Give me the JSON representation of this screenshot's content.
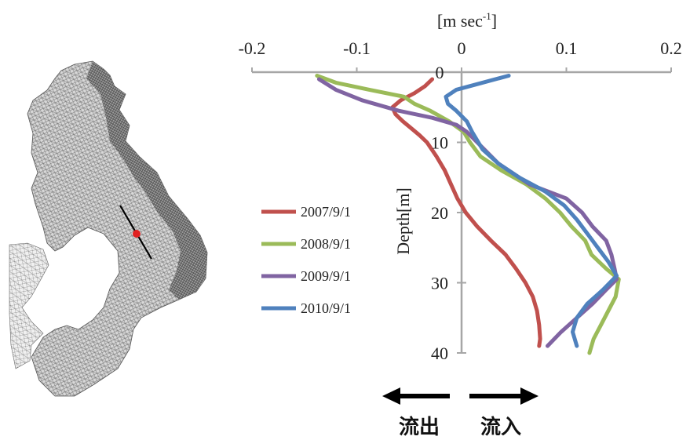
{
  "chart_data": {
    "type": "line",
    "xlabel_main": "[m sec",
    "xlabel_sup": "-1",
    "xlabel_close": "]",
    "ylabel": "Depth[m]",
    "xlim": [
      -0.2,
      0.2
    ],
    "ylim": [
      0,
      40
    ],
    "x_ticks": [
      -0.2,
      -0.1,
      0,
      0.1,
      0.2
    ],
    "x_tick_labels": [
      "-0.2",
      "-0.1",
      "0",
      "0.1",
      "0.2"
    ],
    "y_ticks": [
      0,
      10,
      20,
      30,
      40
    ],
    "y_tick_labels": [
      "0",
      "10",
      "20",
      "30",
      "40"
    ],
    "legend_position": "left",
    "series": [
      {
        "name": "2007/9/1",
        "color": "#c0504d",
        "points": [
          [
            -0.028,
            1
          ],
          [
            -0.035,
            2
          ],
          [
            -0.045,
            3
          ],
          [
            -0.058,
            4
          ],
          [
            -0.066,
            5
          ],
          [
            -0.063,
            6
          ],
          [
            -0.056,
            7
          ],
          [
            -0.048,
            8
          ],
          [
            -0.04,
            9
          ],
          [
            -0.033,
            10
          ],
          [
            -0.024,
            12
          ],
          [
            -0.016,
            14
          ],
          [
            -0.01,
            16
          ],
          [
            -0.004,
            18
          ],
          [
            0.004,
            20
          ],
          [
            0.015,
            22
          ],
          [
            0.028,
            24
          ],
          [
            0.042,
            26
          ],
          [
            0.052,
            28
          ],
          [
            0.061,
            30
          ],
          [
            0.068,
            32
          ],
          [
            0.072,
            34
          ],
          [
            0.074,
            36
          ],
          [
            0.075,
            38
          ],
          [
            0.074,
            39
          ]
        ]
      },
      {
        "name": "2008/9/1",
        "color": "#9bbb59",
        "points": [
          [
            -0.138,
            0.5
          ],
          [
            -0.12,
            1.5
          ],
          [
            -0.088,
            2.5
          ],
          [
            -0.055,
            3.5
          ],
          [
            -0.045,
            4.5
          ],
          [
            -0.03,
            5.5
          ],
          [
            -0.012,
            7
          ],
          [
            0.002,
            8.5
          ],
          [
            0.008,
            10
          ],
          [
            0.018,
            12
          ],
          [
            0.038,
            14
          ],
          [
            0.062,
            16
          ],
          [
            0.08,
            18
          ],
          [
            0.094,
            20
          ],
          [
            0.105,
            22
          ],
          [
            0.118,
            24
          ],
          [
            0.124,
            26
          ],
          [
            0.138,
            28
          ],
          [
            0.15,
            29.5
          ],
          [
            0.147,
            32
          ],
          [
            0.14,
            34
          ],
          [
            0.133,
            36
          ],
          [
            0.126,
            38
          ],
          [
            0.122,
            40
          ]
        ]
      },
      {
        "name": "2009/9/1",
        "color": "#8064a2",
        "points": [
          [
            -0.136,
            1
          ],
          [
            -0.12,
            2.5
          ],
          [
            -0.095,
            4
          ],
          [
            -0.06,
            5.5
          ],
          [
            -0.028,
            6.5
          ],
          [
            -0.005,
            7.5
          ],
          [
            0.005,
            8.5
          ],
          [
            0.015,
            10
          ],
          [
            0.035,
            13
          ],
          [
            0.065,
            16
          ],
          [
            0.1,
            18
          ],
          [
            0.115,
            20
          ],
          [
            0.125,
            22
          ],
          [
            0.138,
            24
          ],
          [
            0.143,
            26
          ],
          [
            0.146,
            28
          ],
          [
            0.148,
            29.5
          ],
          [
            0.138,
            31
          ],
          [
            0.125,
            33
          ],
          [
            0.11,
            35
          ],
          [
            0.095,
            37
          ],
          [
            0.082,
            39
          ]
        ]
      },
      {
        "name": "2010/9/1",
        "color": "#4f81bd",
        "points": [
          [
            0.045,
            0.5
          ],
          [
            0.02,
            1.5
          ],
          [
            -0.005,
            2.5
          ],
          [
            -0.015,
            3.5
          ],
          [
            -0.013,
            4.5
          ],
          [
            -0.005,
            5.5
          ],
          [
            0.005,
            7
          ],
          [
            0.01,
            8.5
          ],
          [
            0.02,
            11
          ],
          [
            0.035,
            13
          ],
          [
            0.055,
            15
          ],
          [
            0.08,
            17
          ],
          [
            0.098,
            19
          ],
          [
            0.11,
            21
          ],
          [
            0.12,
            23
          ],
          [
            0.13,
            25
          ],
          [
            0.14,
            27
          ],
          [
            0.148,
            29
          ],
          [
            0.135,
            31
          ],
          [
            0.12,
            33
          ],
          [
            0.11,
            35
          ],
          [
            0.106,
            37
          ],
          [
            0.11,
            39
          ]
        ]
      }
    ]
  },
  "direction_labels": {
    "outflow": "流出",
    "inflow": "流入"
  },
  "map": {
    "marker_color": "#e02020"
  }
}
